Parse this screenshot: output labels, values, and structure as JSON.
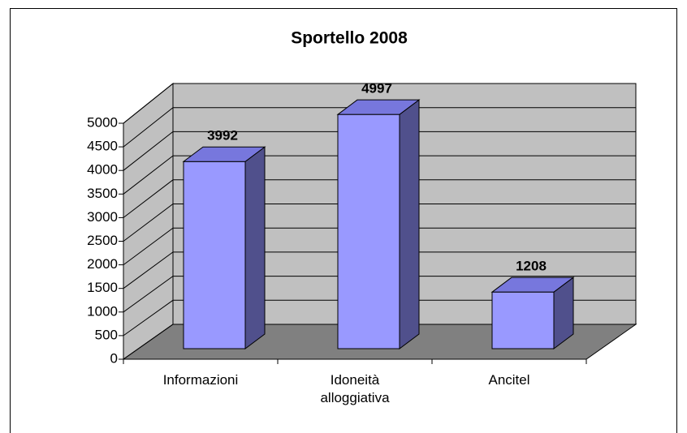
{
  "chart_data": {
    "type": "bar3d",
    "title": "Sportello 2008",
    "categories": [
      "Informazioni",
      "Idoneità alloggiativa",
      "Ancitel"
    ],
    "values": [
      3992,
      4997,
      1208
    ],
    "color": "#9999ff",
    "top_color": "#7777dd",
    "side_color": "#50508c",
    "wall_color": "#c0c0c0",
    "floor_color": "#808080",
    "ylim": [
      0,
      5000
    ],
    "yticks": [
      0,
      500,
      1000,
      1500,
      2000,
      2500,
      3000,
      3500,
      4000,
      4500,
      5000
    ],
    "grid": true
  }
}
